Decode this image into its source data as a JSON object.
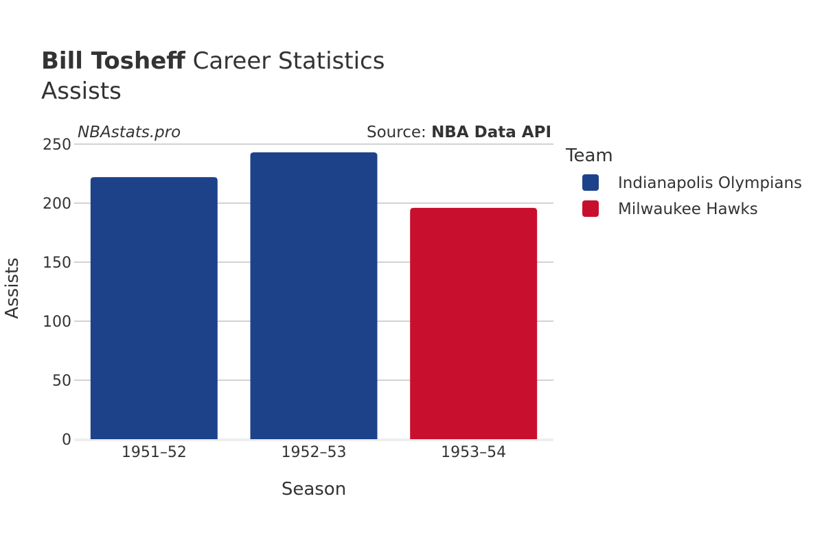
{
  "header": {
    "title_bold": "Bill Tosheff",
    "title_rest": " Career Statistics",
    "subtitle": "Assists"
  },
  "watermark": "NBAstats.pro",
  "source": {
    "prefix": "Source: ",
    "name": "NBA Data API"
  },
  "legend": {
    "title": "Team",
    "items": [
      {
        "label": "Indianapolis Olympians",
        "color": "#1d428a"
      },
      {
        "label": "Milwaukee Hawks",
        "color": "#c8102e"
      }
    ]
  },
  "chart_data": {
    "type": "bar",
    "title": "Bill Tosheff Career Statistics",
    "subtitle": "Assists",
    "xlabel": "Season",
    "ylabel": "Assists",
    "ylim": [
      0,
      250
    ],
    "yticks": [
      0,
      50,
      100,
      150,
      200,
      250
    ],
    "categories": [
      "1951–52",
      "1952–53",
      "1953–54"
    ],
    "values": [
      222,
      243,
      196
    ],
    "teams": [
      "Indianapolis Olympians",
      "Indianapolis Olympians",
      "Milwaukee Hawks"
    ],
    "colors": [
      "#1d428a",
      "#1d428a",
      "#c8102e"
    ],
    "grid": true,
    "legend_position": "right"
  }
}
